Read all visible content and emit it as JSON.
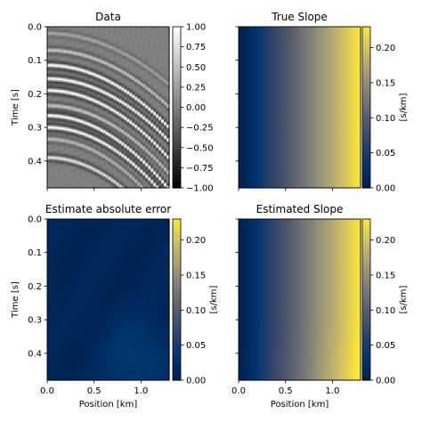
{
  "figure": {
    "background": "#ffffff"
  },
  "chart_data": [
    {
      "id": "data",
      "type": "heatmap",
      "title": "Data",
      "xlabel": "",
      "ylabel": "Time [s]",
      "xlim": [
        0.0,
        1.3
      ],
      "ylim": [
        0.0,
        0.48
      ],
      "y_inverted": true,
      "xticks": [
        0.0,
        0.5,
        1.0
      ],
      "xtick_labels": [
        "",
        "",
        ""
      ],
      "yticks": [
        0.0,
        0.1,
        0.2,
        0.3,
        0.4
      ],
      "ytick_labels": [
        "0.0",
        "0.1",
        "0.2",
        "0.3",
        "0.4"
      ],
      "colormap": "gray",
      "colorbar": {
        "min": -1.0,
        "max": 1.0,
        "ticks": [
          1.0,
          0.75,
          0.5,
          0.25,
          0.0,
          -0.25,
          -0.5,
          -0.75,
          -1.0
        ],
        "tick_labels": [
          "1.00",
          "0.75",
          "0.50",
          "0.25",
          "0.00",
          "−0.25",
          "−0.50",
          "−0.75",
          "−1.00"
        ],
        "label": ""
      },
      "events": [
        {
          "t0": 0.02,
          "curvature": 0.09,
          "amplitude": 0.3
        },
        {
          "t0": 0.07,
          "curvature": 0.1,
          "amplitude": 0.55
        },
        {
          "t0": 0.115,
          "curvature": 0.11,
          "amplitude": 1.0
        },
        {
          "t0": 0.155,
          "curvature": 0.11,
          "amplitude": 1.0
        },
        {
          "t0": 0.19,
          "curvature": 0.12,
          "amplitude": 1.0
        },
        {
          "t0": 0.235,
          "curvature": 0.12,
          "amplitude": 0.55
        },
        {
          "t0": 0.265,
          "curvature": 0.13,
          "amplitude": 1.0
        },
        {
          "t0": 0.3,
          "curvature": 0.13,
          "amplitude": 1.0
        },
        {
          "t0": 0.335,
          "curvature": 0.14,
          "amplitude": 0.45
        },
        {
          "t0": 0.39,
          "curvature": 0.14,
          "amplitude": 0.8
        }
      ]
    },
    {
      "id": "true-slope",
      "type": "heatmap",
      "title": "True Slope",
      "xlabel": "",
      "ylabel": "",
      "xlim": [
        0.0,
        1.3
      ],
      "ylim": [
        0.0,
        0.48
      ],
      "y_inverted": true,
      "xticks": [
        0.0,
        0.5,
        1.0
      ],
      "xtick_labels": [
        "",
        "",
        ""
      ],
      "yticks": [
        0.0,
        0.1,
        0.2,
        0.3,
        0.4
      ],
      "ytick_labels": [
        "",
        "",
        "",
        "",
        ""
      ],
      "colormap": "cividis",
      "field": {
        "kind": "linear_x",
        "value_at_xmin": 0.0,
        "value_at_xmax": 0.23
      },
      "colorbar": {
        "min": 0.0,
        "max": 0.23,
        "ticks": [
          0.2,
          0.15,
          0.1,
          0.05,
          0.0
        ],
        "tick_labels": [
          "0.20",
          "0.15",
          "0.10",
          "0.05",
          "0.00"
        ],
        "label": "[s/km]"
      }
    },
    {
      "id": "abs-error",
      "type": "heatmap",
      "title": "Estimate absolute error",
      "xlabel": "Position [km]",
      "ylabel": "Time [s]",
      "xlim": [
        0.0,
        1.3
      ],
      "ylim": [
        0.0,
        0.48
      ],
      "y_inverted": true,
      "xticks": [
        0.0,
        0.5,
        1.0
      ],
      "xtick_labels": [
        "0.0",
        "0.5",
        "1.0"
      ],
      "yticks": [
        0.0,
        0.1,
        0.2,
        0.3,
        0.4
      ],
      "ytick_labels": [
        "0.0",
        "0.1",
        "0.2",
        "0.3",
        "0.4"
      ],
      "colormap": "cividis",
      "field": {
        "kind": "error",
        "base": 0.01,
        "peak": 0.04,
        "peak_x": 0.95,
        "peak_t": 0.42
      },
      "colorbar": {
        "min": 0.0,
        "max": 0.23,
        "ticks": [
          0.2,
          0.15,
          0.1,
          0.05,
          0.0
        ],
        "tick_labels": [
          "0.20",
          "0.15",
          "0.10",
          "0.05",
          "0.00"
        ],
        "label": "[s/km]"
      }
    },
    {
      "id": "estimated-slope",
      "type": "heatmap",
      "title": "Estimated Slope",
      "xlabel": "Position [km]",
      "ylabel": "",
      "xlim": [
        0.0,
        1.3
      ],
      "ylim": [
        0.0,
        0.48
      ],
      "y_inverted": true,
      "xticks": [
        0.0,
        0.5,
        1.0
      ],
      "xtick_labels": [
        "0.0",
        "0.5",
        "1.0"
      ],
      "yticks": [
        0.0,
        0.1,
        0.2,
        0.3,
        0.4
      ],
      "ytick_labels": [
        "",
        "",
        "",
        "",
        ""
      ],
      "colormap": "cividis",
      "field": {
        "kind": "linear_x",
        "value_at_xmin": 0.0,
        "value_at_xmax": 0.23,
        "late_boost": 0.02
      },
      "colorbar": {
        "min": 0.0,
        "max": 0.23,
        "ticks": [
          0.2,
          0.15,
          0.1,
          0.05,
          0.0
        ],
        "tick_labels": [
          "0.20",
          "0.15",
          "0.10",
          "0.05",
          "0.00"
        ],
        "label": "[s/km]"
      }
    }
  ]
}
